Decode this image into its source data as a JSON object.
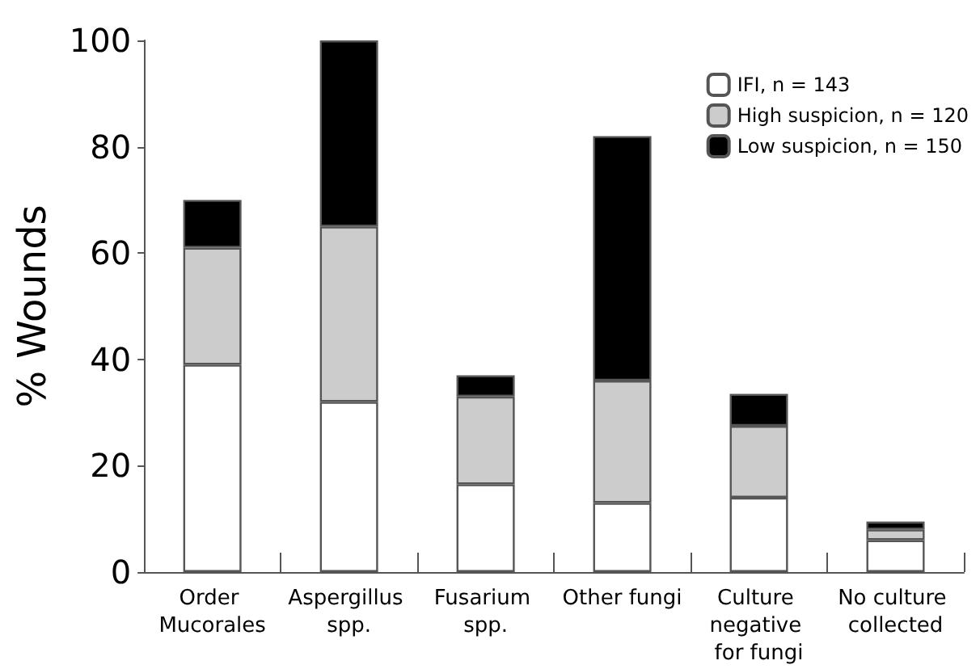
{
  "chart_data": {
    "type": "bar",
    "stacked": true,
    "ylabel": "% Wounds",
    "categories": [
      "Order Mucorales",
      "Aspergillus spp.",
      "Fusarium spp.",
      "Other fungi",
      "Culture negative for fungi",
      "No culture collected"
    ],
    "series": [
      {
        "name": "IFI, n = 143",
        "color": "#ffffff",
        "values": [
          39,
          32,
          16.5,
          13,
          14,
          6
        ]
      },
      {
        "name": "High suspicion, n = 120",
        "color": "#cccccc",
        "values": [
          22,
          33,
          16.5,
          23,
          13.5,
          2
        ]
      },
      {
        "name": "Low suspicion, n = 150",
        "color": "#000000",
        "values": [
          9,
          35,
          4,
          46,
          6,
          1.5
        ]
      }
    ],
    "ylim": [
      0,
      100
    ],
    "yticks": [
      0,
      20,
      40,
      60,
      80,
      100
    ],
    "grid": false,
    "legend": "top right"
  }
}
